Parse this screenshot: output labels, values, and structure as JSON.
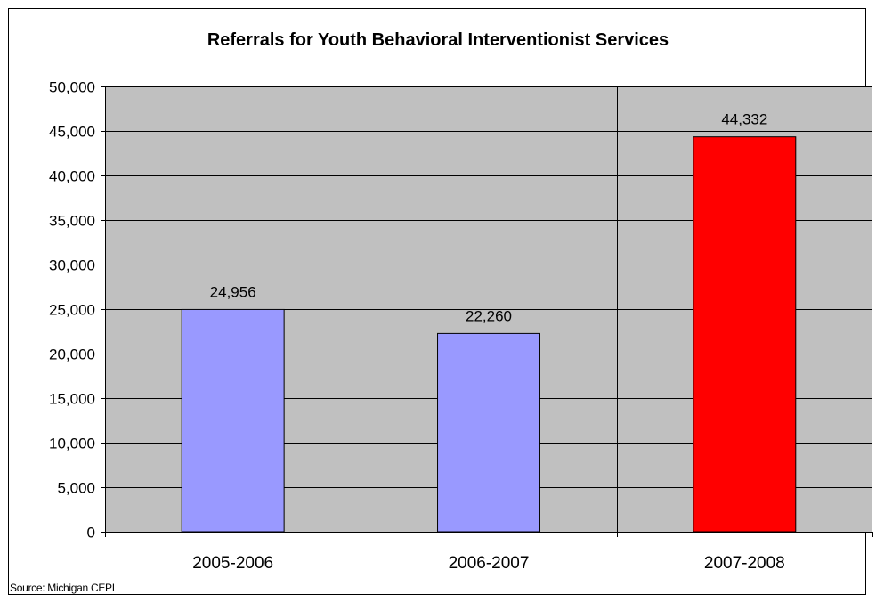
{
  "chart_data": {
    "type": "bar",
    "title": "Referrals for Youth Behavioral Interventionist Services",
    "xlabel": "",
    "ylabel": "",
    "categories": [
      "2005-2006",
      "2006-2007",
      "2007-2008"
    ],
    "values": [
      24956,
      22260,
      44332
    ],
    "data_labels": [
      "24,956",
      "22,260",
      "44,332"
    ],
    "ylim": [
      0,
      50000
    ],
    "yticks": [
      0,
      5000,
      10000,
      15000,
      20000,
      25000,
      30000,
      35000,
      40000,
      45000,
      50000
    ],
    "ytick_labels": [
      "0",
      "5,000",
      "10,000",
      "15,000",
      "20,000",
      "25,000",
      "30,000",
      "35,000",
      "40,000",
      "45,000",
      "50,000"
    ],
    "grid": true,
    "legend": "none",
    "colors": {
      "plot_background": "#c0c0c0",
      "bars": [
        "#9999ff",
        "#9999ff",
        "#ff0000"
      ],
      "bar_outline": "#000000",
      "gridline": "#000000"
    }
  },
  "source": "Source: Michigan CEPI"
}
